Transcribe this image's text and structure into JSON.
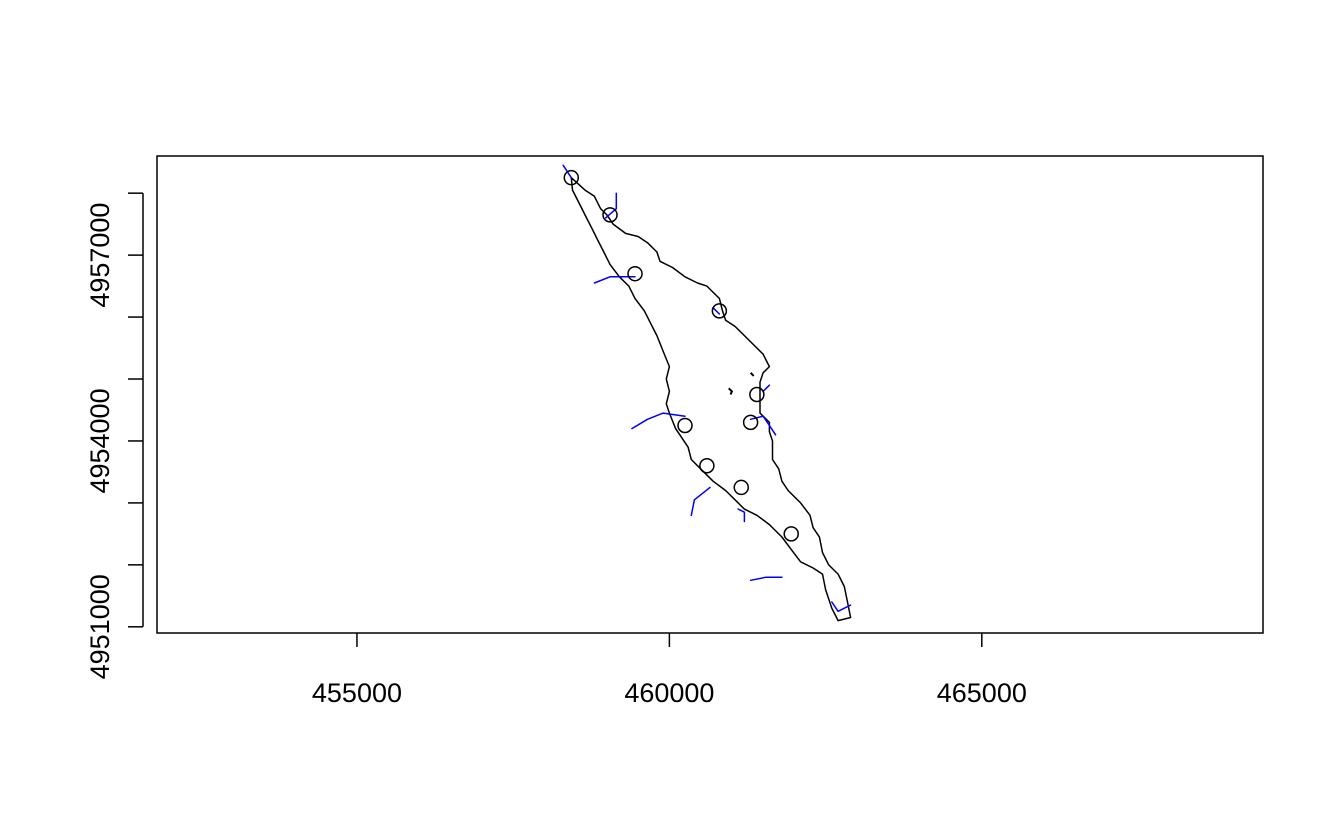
{
  "chart_data": {
    "type": "map",
    "title": "",
    "xlabel": "",
    "ylabel": "",
    "xlim": [
      451800,
      469500
    ],
    "ylim": [
      4950900,
      4958600
    ],
    "x_ticks": [
      {
        "value": 455000,
        "label": "455000"
      },
      {
        "value": 460000,
        "label": "460000"
      },
      {
        "value": 465000,
        "label": "465000"
      }
    ],
    "y_ticks": [
      {
        "value": 4951000,
        "label": "4951000"
      },
      {
        "value": 4952000,
        "label": ""
      },
      {
        "value": 4953000,
        "label": ""
      },
      {
        "value": 4954000,
        "label": "4954000"
      },
      {
        "value": 4955000,
        "label": ""
      },
      {
        "value": 4956000,
        "label": ""
      },
      {
        "value": 4957000,
        "label": "4957000"
      },
      {
        "value": 4958000,
        "label": ""
      }
    ],
    "colors": {
      "shoreline": "#000000",
      "streams": "#0000ff",
      "points": "#000000"
    },
    "shoreline": [
      [
        458430,
        4958250
      ],
      [
        458650,
        4958050
      ],
      [
        458800,
        4957950
      ],
      [
        458900,
        4957750
      ],
      [
        459000,
        4957650
      ],
      [
        459100,
        4957500
      ],
      [
        459300,
        4957350
      ],
      [
        459500,
        4957300
      ],
      [
        459650,
        4957200
      ],
      [
        459800,
        4957050
      ],
      [
        459850,
        4956900
      ],
      [
        460050,
        4956800
      ],
      [
        460250,
        4956650
      ],
      [
        460450,
        4956550
      ],
      [
        460600,
        4956500
      ],
      [
        460800,
        4956300
      ],
      [
        460850,
        4956100
      ],
      [
        460900,
        4955950
      ],
      [
        461050,
        4955850
      ],
      [
        461200,
        4955700
      ],
      [
        461350,
        4955550
      ],
      [
        461500,
        4955400
      ],
      [
        461600,
        4955200
      ],
      [
        461500,
        4955100
      ],
      [
        461450,
        4954950
      ],
      [
        461450,
        4954700
      ],
      [
        461450,
        4954450
      ],
      [
        461600,
        4954300
      ],
      [
        461600,
        4954150
      ],
      [
        461650,
        4954000
      ],
      [
        461650,
        4953700
      ],
      [
        461750,
        4953550
      ],
      [
        461800,
        4953350
      ],
      [
        461900,
        4953200
      ],
      [
        462100,
        4953000
      ],
      [
        462250,
        4952800
      ],
      [
        462300,
        4952600
      ],
      [
        462400,
        4952450
      ],
      [
        462450,
        4952200
      ],
      [
        462550,
        4952000
      ],
      [
        462700,
        4951850
      ],
      [
        462800,
        4951650
      ],
      [
        462850,
        4951400
      ],
      [
        462900,
        4951150
      ],
      [
        462700,
        4951100
      ],
      [
        462600,
        4951300
      ],
      [
        462500,
        4951600
      ],
      [
        462450,
        4951850
      ],
      [
        462300,
        4951950
      ],
      [
        462100,
        4952050
      ],
      [
        461950,
        4952250
      ],
      [
        461800,
        4952450
      ],
      [
        461600,
        4952650
      ],
      [
        461400,
        4952800
      ],
      [
        461200,
        4952900
      ],
      [
        461050,
        4953050
      ],
      [
        460900,
        4953200
      ],
      [
        460700,
        4953350
      ],
      [
        460500,
        4953550
      ],
      [
        460350,
        4953700
      ],
      [
        460300,
        4953900
      ],
      [
        460200,
        4954050
      ],
      [
        460100,
        4954200
      ],
      [
        460000,
        4954450
      ],
      [
        459950,
        4954600
      ],
      [
        460000,
        4954800
      ],
      [
        459950,
        4955000
      ],
      [
        460000,
        4955200
      ],
      [
        459900,
        4955450
      ],
      [
        459800,
        4955700
      ],
      [
        459700,
        4955900
      ],
      [
        459600,
        4956100
      ],
      [
        459450,
        4956300
      ],
      [
        459350,
        4956500
      ],
      [
        459200,
        4956650
      ],
      [
        459050,
        4956850
      ],
      [
        458950,
        4957050
      ],
      [
        458850,
        4957250
      ],
      [
        458750,
        4957450
      ],
      [
        458650,
        4957650
      ],
      [
        458550,
        4957850
      ],
      [
        458450,
        4958050
      ],
      [
        458430,
        4958250
      ]
    ],
    "islands": [
      [
        [
          460950,
          4954850
        ],
        [
          461000,
          4954800
        ],
        [
          460980,
          4954750
        ]
      ],
      [
        [
          461300,
          4955100
        ],
        [
          461350,
          4955050
        ]
      ]
    ],
    "streams": [
      [
        [
          458300,
          4958450
        ],
        [
          458430,
          4958250
        ]
      ],
      [
        [
          459150,
          4958000
        ],
        [
          459150,
          4957750
        ],
        [
          458980,
          4957600
        ]
      ],
      [
        [
          458800,
          4956550
        ],
        [
          459050,
          4956650
        ],
        [
          459450,
          4956650
        ]
      ],
      [
        [
          460700,
          4956150
        ],
        [
          460800,
          4956050
        ]
      ],
      [
        [
          461600,
          4954900
        ],
        [
          461500,
          4954800
        ]
      ],
      [
        [
          459400,
          4954200
        ],
        [
          459650,
          4954350
        ],
        [
          459900,
          4954450
        ],
        [
          460250,
          4954400
        ]
      ],
      [
        [
          461700,
          4954100
        ],
        [
          461600,
          4954250
        ],
        [
          461500,
          4954400
        ],
        [
          461300,
          4954350
        ]
      ],
      [
        [
          460350,
          4952800
        ],
        [
          460400,
          4953050
        ],
        [
          460650,
          4953250
        ]
      ],
      [
        [
          461200,
          4952700
        ],
        [
          461200,
          4952850
        ],
        [
          461100,
          4952900
        ]
      ],
      [
        [
          461300,
          4951750
        ],
        [
          461550,
          4951800
        ],
        [
          461800,
          4951800
        ]
      ],
      [
        [
          462600,
          4951400
        ],
        [
          462700,
          4951250
        ],
        [
          462900,
          4951350
        ]
      ]
    ],
    "points": [
      [
        458430,
        4958250
      ],
      [
        459050,
        4957650
      ],
      [
        459450,
        4956700
      ],
      [
        460800,
        4956100
      ],
      [
        461400,
        4954750
      ],
      [
        461300,
        4954300
      ],
      [
        460250,
        4954250
      ],
      [
        460600,
        4953600
      ],
      [
        461150,
        4953250
      ],
      [
        461950,
        4952500
      ]
    ]
  }
}
